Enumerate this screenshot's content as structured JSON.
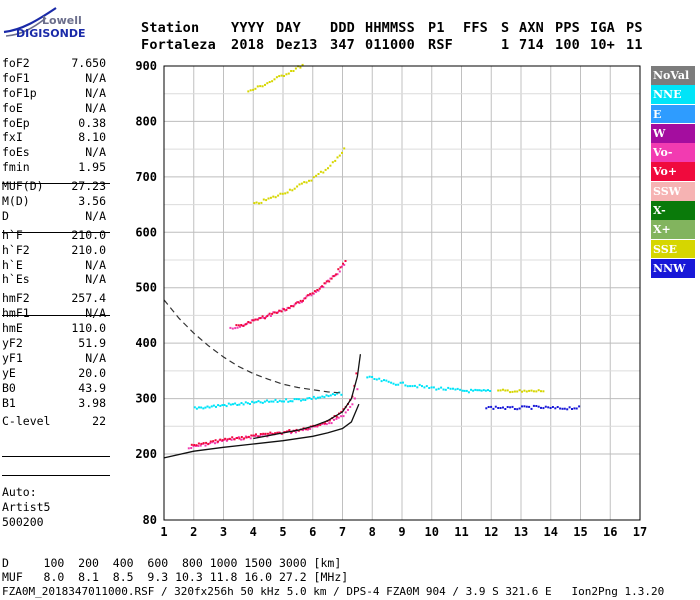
{
  "logo": {
    "line1": "Lowell",
    "line2": "DIGISONDE"
  },
  "header": {
    "labels": [
      "Station",
      "YYYY",
      "DAY",
      "DDD",
      "HHMMSS",
      "P1",
      "FFS",
      "S",
      "AXN",
      "PPS",
      "IGA",
      "PS"
    ],
    "values": [
      "Fortaleza",
      "2018",
      "Dez13",
      "347",
      "011000",
      "RSF",
      "1",
      "714",
      "100",
      "10+",
      "11"
    ]
  },
  "scaled_parameters": [
    {
      "name": "foF2",
      "value": "7.650"
    },
    {
      "name": "foF1",
      "value": "N/A"
    },
    {
      "name": "foF1p",
      "value": "N/A"
    },
    {
      "name": "foE",
      "value": "N/A"
    },
    {
      "name": "foEp",
      "value": "0.38"
    },
    {
      "name": "fxI",
      "value": "8.10"
    },
    {
      "name": "foEs",
      "value": "N/A"
    },
    {
      "name": "fmin",
      "value": "1.95"
    },
    {
      "name": "MUF(D)",
      "value": "27.23"
    },
    {
      "name": "M(D)",
      "value": "3.56"
    },
    {
      "name": "D",
      "value": "N/A"
    },
    {
      "name": "h`F",
      "value": "210.0"
    },
    {
      "name": "h`F2",
      "value": "210.0"
    },
    {
      "name": "h`E",
      "value": "N/A"
    },
    {
      "name": "h`Es",
      "value": "N/A"
    },
    {
      "name": "hmF2",
      "value": "257.4"
    },
    {
      "name": "hmF1",
      "value": "N/A"
    },
    {
      "name": "hmE",
      "value": "110.0"
    },
    {
      "name": "yF2",
      "value": "51.9"
    },
    {
      "name": "yF1",
      "value": "N/A"
    },
    {
      "name": "yE",
      "value": "20.0"
    },
    {
      "name": "B0",
      "value": "43.9"
    },
    {
      "name": "B1",
      "value": "3.98"
    },
    {
      "name": "C-level",
      "value": "22"
    }
  ],
  "autoscaling": {
    "line1": "Auto:",
    "line2": "Artist5",
    "line3": "500200"
  },
  "legend": [
    {
      "label": "NoVal",
      "color": "#7c7c7c",
      "text_color": "#ffffff"
    },
    {
      "label": "NNE",
      "color": "#00e4f8",
      "text_color": "#ffffff"
    },
    {
      "label": "E",
      "color": "#2e9cff",
      "text_color": "#ffffff"
    },
    {
      "label": "W",
      "color": "#a40d9f",
      "text_color": "#ffffff"
    },
    {
      "label": "Vo-",
      "color": "#f23bb1",
      "text_color": "#ffffff"
    },
    {
      "label": "Vo+",
      "color": "#f00a3d",
      "text_color": "#ffffff"
    },
    {
      "label": "SSW",
      "color": "#f6b3b3",
      "text_color": "#ffffff"
    },
    {
      "label": "X-",
      "color": "#0a7a0a",
      "text_color": "#ffffff"
    },
    {
      "label": "X+",
      "color": "#82b45e",
      "text_color": "#ffffff"
    },
    {
      "label": "SSE",
      "color": "#d6d600",
      "text_color": "#ffffff"
    },
    {
      "label": "NNW",
      "color": "#1818d8",
      "text_color": "#ffffff"
    }
  ],
  "footer": {
    "d_line": "D     100  200  400  600  800 1000 1500 3000 [km]",
    "muf_line": "MUF   8.0  8.1  8.5  9.3 10.3 11.8 16.0 27.2 [MHz]",
    "info_line": "FZA0M_2018347011000.RSF / 320fx256h 50 kHz 5.0 km / DPS-4 FZA0M 904 / 3.9 S 321.6 E   Ion2Png 1.3.20"
  },
  "chart_data": {
    "type": "scatter",
    "xlim": [
      1,
      17
    ],
    "ylim": [
      80,
      900
    ],
    "x_ticks": [
      1,
      2,
      3,
      4,
      5,
      6,
      7,
      8,
      9,
      10,
      11,
      12,
      13,
      14,
      15,
      16,
      17
    ],
    "y_ticks": [
      80,
      200,
      300,
      400,
      500,
      600,
      700,
      800,
      900
    ],
    "grid": true,
    "series": [
      {
        "name": "Vo-",
        "traces": [
          {
            "x": [
              1.8,
              2.2,
              2.6,
              3.0,
              3.4,
              3.8,
              4.2,
              4.6,
              5.0,
              5.4,
              5.8,
              6.2,
              6.6,
              7.0,
              7.3,
              7.55
            ],
            "y": [
              212,
              217,
              222,
              226,
              229,
              232,
              235,
              237,
              240,
              243,
              247,
              252,
              260,
              272,
              290,
              330
            ]
          },
          {
            "x": [
              3.2,
              3.6,
              4.0,
              4.4,
              4.8,
              5.2,
              5.6,
              6.0,
              6.4,
              6.8,
              7.1
            ],
            "y": [
              428,
              435,
              442,
              450,
              458,
              467,
              478,
              492,
              508,
              528,
              548
            ]
          }
        ]
      },
      {
        "name": "Vo+",
        "traces": [
          {
            "x": [
              1.9,
              2.3,
              2.7,
              3.1,
              3.5,
              3.9,
              4.3,
              4.7,
              5.1,
              5.5,
              5.9,
              6.3,
              6.7,
              7.0,
              7.3,
              7.5
            ],
            "y": [
              216,
              220,
              224,
              228,
              231,
              234,
              236,
              239,
              242,
              246,
              251,
              258,
              268,
              282,
              305,
              370
            ]
          },
          {
            "x": [
              3.4,
              3.8,
              4.2,
              4.6,
              5.0,
              5.4,
              5.8,
              6.2,
              6.6,
              6.9,
              7.15
            ],
            "y": [
              432,
              438,
              446,
              454,
              462,
              472,
              486,
              500,
              518,
              538,
              555
            ]
          }
        ]
      },
      {
        "name": "SSE",
        "traces": [
          {
            "x": [
              4.0,
              4.4,
              4.8,
              5.2,
              5.6,
              6.0,
              6.4,
              6.8,
              7.1
            ],
            "y": [
              652,
              660,
              668,
              678,
              688,
              700,
              715,
              735,
              760
            ]
          },
          {
            "x": [
              3.8,
              4.2,
              4.6,
              5.0,
              5.4,
              5.7
            ],
            "y": [
              855,
              865,
              875,
              886,
              897,
              905
            ]
          },
          {
            "x": [
              12.2,
              12.6,
              13.0,
              13.4,
              13.8
            ],
            "y": [
              315,
              316,
              314,
              315,
              316
            ]
          }
        ]
      },
      {
        "name": "NNE",
        "traces": [
          {
            "x": [
              7.8,
              8.2,
              8.6,
              9.0,
              9.4,
              9.8,
              10.2,
              10.6,
              11.0,
              11.5,
              12.0
            ],
            "y": [
              340,
              335,
              330,
              328,
              325,
              322,
              320,
              318,
              316,
              315,
              315
            ]
          },
          {
            "x": [
              2.0,
              2.5,
              3.0,
              3.5,
              4.0,
              4.5,
              5.0,
              5.5,
              6.0,
              6.5,
              7.0
            ],
            "y": [
              285,
              287,
              290,
              292,
              294,
              296,
              298,
              300,
              303,
              306,
              312
            ]
          }
        ]
      },
      {
        "name": "NNW",
        "traces": [
          {
            "x": [
              11.8,
              12.2,
              12.6,
              13.0,
              13.4,
              13.8,
              14.2,
              14.6,
              15.0
            ],
            "y": [
              285,
              286,
              284,
              285,
              286,
              285,
              284,
              285,
              285
            ]
          }
        ]
      }
    ],
    "computed_curves": {
      "dashed": {
        "x": [
          1.0,
          1.5,
          2.0,
          2.5,
          3.0,
          3.5,
          4.0,
          4.5,
          5.0,
          5.5,
          6.0,
          6.5,
          7.0
        ],
        "y": [
          478,
          445,
          418,
          395,
          375,
          358,
          345,
          335,
          326,
          320,
          316,
          312,
          310
        ]
      },
      "solid_low": {
        "x": [
          1.0,
          2.0,
          3.0,
          4.0,
          5.0,
          6.0,
          6.5,
          7.0,
          7.3,
          7.55
        ],
        "y": [
          193,
          205,
          212,
          218,
          224,
          232,
          238,
          246,
          258,
          290
        ]
      },
      "solid_mid": {
        "x": [
          4.0,
          4.5,
          5.0,
          5.5,
          6.0,
          6.5,
          7.0,
          7.3,
          7.5,
          7.6
        ],
        "y": [
          228,
          233,
          238,
          243,
          250,
          260,
          276,
          300,
          340,
          380
        ]
      }
    }
  }
}
